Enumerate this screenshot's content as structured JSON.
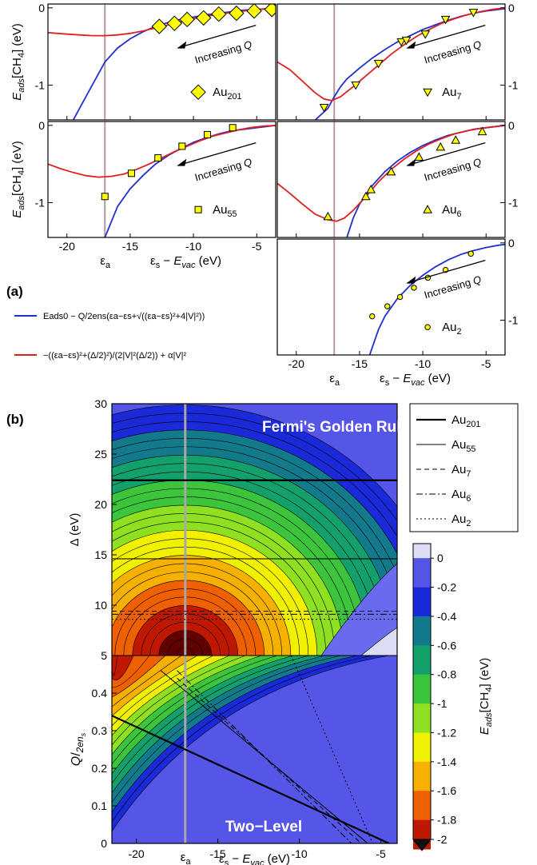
{
  "panel_a_label": "(a)",
  "panel_b_label": "(b)",
  "colors": {
    "blue_curve": "#1f2fd0",
    "red_curve": "#e02020",
    "marker_fill": "#ffff00",
    "eps_a_line": "#b89a9a"
  },
  "chart_data": [
    {
      "type": "line",
      "panel": "Au201",
      "legend": "Au",
      "legend_sub": "201",
      "marker": "diamond",
      "annotation": "Increasing Q",
      "ylabel": "Eads[CH4] (eV)",
      "xlim": [
        -21.5,
        -3.5
      ],
      "ylim": [
        -1.45,
        0.05
      ],
      "yticks": [
        0,
        -1
      ],
      "eps_a": -17.0,
      "series": [
        {
          "name": "model",
          "x": [
            -19.5,
            -18,
            -17,
            -16,
            -15,
            -14,
            -13,
            -12,
            -11,
            -10,
            -9,
            -8,
            -7,
            -6,
            -5,
            -4,
            -3.5
          ],
          "y": [
            -1.45,
            -1.0,
            -0.7,
            -0.52,
            -0.4,
            -0.31,
            -0.24,
            -0.19,
            -0.15,
            -0.12,
            -0.09,
            -0.07,
            -0.05,
            -0.03,
            -0.02,
            -0.01,
            0.0
          ]
        },
        {
          "name": "fit",
          "x": [
            -21.5,
            -20,
            -19,
            -18,
            -17,
            -16,
            -15,
            -14,
            -13,
            -12,
            -11,
            -10,
            -9,
            -8,
            -7,
            -6,
            -5,
            -4,
            -3.5
          ],
          "y": [
            -0.32,
            -0.34,
            -0.35,
            -0.36,
            -0.36,
            -0.35,
            -0.33,
            -0.3,
            -0.26,
            -0.22,
            -0.18,
            -0.14,
            -0.11,
            -0.08,
            -0.06,
            -0.04,
            -0.02,
            -0.01,
            0.0
          ]
        },
        {
          "name": "data",
          "x": [
            -12.7,
            -11.5,
            -10.5,
            -9.2,
            -8,
            -6.6,
            -5.2,
            -3.8
          ],
          "y": [
            -0.24,
            -0.2,
            -0.15,
            -0.13,
            -0.08,
            -0.07,
            -0.04,
            -0.02
          ]
        }
      ]
    },
    {
      "type": "line",
      "panel": "Au7",
      "legend": "Au",
      "legend_sub": "7",
      "marker": "triangle-down",
      "annotation": "Increasing Q",
      "xlim": [
        -21.5,
        -3.5
      ],
      "ylim": [
        -1.45,
        0.05
      ],
      "yticks": [
        0,
        -1
      ],
      "eps_a": -17.0,
      "series": [
        {
          "name": "model",
          "x": [
            -18.5,
            -17.5,
            -17,
            -16.5,
            -16,
            -15,
            -14,
            -13,
            -12,
            -11,
            -10,
            -9,
            -8,
            -7,
            -6,
            -5,
            -4,
            -3.5
          ],
          "y": [
            -1.45,
            -1.3,
            -1.15,
            -1.02,
            -0.92,
            -0.78,
            -0.65,
            -0.54,
            -0.44,
            -0.36,
            -0.28,
            -0.22,
            -0.16,
            -0.11,
            -0.07,
            -0.04,
            -0.02,
            -0.01
          ]
        },
        {
          "name": "fit",
          "x": [
            -21.5,
            -20.5,
            -19.5,
            -18.5,
            -17.8,
            -17.2,
            -16.5,
            -15.5,
            -14.5,
            -13.5,
            -12.5,
            -11.5,
            -10.5,
            -9.5,
            -8.5,
            -7.5,
            -6.5,
            -5.5,
            -4.5,
            -3.5
          ],
          "y": [
            -0.7,
            -0.8,
            -0.95,
            -1.1,
            -1.18,
            -1.2,
            -1.15,
            -1.02,
            -0.88,
            -0.74,
            -0.6,
            -0.48,
            -0.37,
            -0.28,
            -0.2,
            -0.14,
            -0.09,
            -0.05,
            -0.02,
            0.0
          ]
        },
        {
          "name": "data",
          "x": [
            -17.8,
            -15.3,
            -13.5,
            -11.7,
            -11.3,
            -9.8,
            -8.2,
            -6.0
          ],
          "y": [
            -1.29,
            -1.0,
            -0.72,
            -0.44,
            -0.42,
            -0.34,
            -0.15,
            -0.06
          ]
        }
      ]
    },
    {
      "type": "line",
      "panel": "Au55",
      "legend": "Au",
      "legend_sub": "55",
      "marker": "square",
      "annotation": "Increasing Q",
      "ylabel": "Eads[CH4] (eV)",
      "xlabel": "εs − Evac (eV)",
      "xlim": [
        -21.5,
        -3.5
      ],
      "ylim": [
        -1.45,
        0.05
      ],
      "yticks": [
        0,
        -1
      ],
      "xticks": [
        -20,
        -15,
        -10,
        -5
      ],
      "eps_a": -17.0,
      "eps_a_label": "εa",
      "series": [
        {
          "name": "model",
          "x": [
            -17.0,
            -16,
            -15,
            -14,
            -13,
            -12,
            -11,
            -10,
            -9,
            -8,
            -7,
            -6,
            -5,
            -4,
            -3.5
          ],
          "y": [
            -1.45,
            -1.05,
            -0.82,
            -0.65,
            -0.5,
            -0.39,
            -0.3,
            -0.22,
            -0.16,
            -0.11,
            -0.07,
            -0.05,
            -0.03,
            -0.01,
            0.0
          ]
        },
        {
          "name": "fit",
          "x": [
            -21.5,
            -20.5,
            -19.5,
            -18.5,
            -17.5,
            -16.5,
            -15.5,
            -14.5,
            -13.5,
            -12.5,
            -11.5,
            -10.5,
            -9.5,
            -8.5,
            -7.5,
            -6.5,
            -5.5,
            -4.5,
            -3.5
          ],
          "y": [
            -0.5,
            -0.56,
            -0.61,
            -0.65,
            -0.67,
            -0.66,
            -0.63,
            -0.57,
            -0.5,
            -0.42,
            -0.34,
            -0.27,
            -0.2,
            -0.14,
            -0.1,
            -0.06,
            -0.03,
            -0.01,
            0.0
          ]
        },
        {
          "name": "data",
          "x": [
            -17.0,
            -14.9,
            -12.8,
            -10.9,
            -8.9,
            -6.9
          ],
          "y": [
            -0.92,
            -0.62,
            -0.42,
            -0.27,
            -0.12,
            -0.03
          ]
        }
      ]
    },
    {
      "type": "line",
      "panel": "Au6",
      "legend": "Au",
      "legend_sub": "6",
      "marker": "triangle-up",
      "annotation": "Increasing Q",
      "xlim": [
        -21.5,
        -3.5
      ],
      "ylim": [
        -1.45,
        0.05
      ],
      "yticks": [
        0,
        -1
      ],
      "eps_a": -17.0,
      "series": [
        {
          "name": "model",
          "x": [
            -16.0,
            -15.5,
            -15,
            -14,
            -13,
            -12,
            -11,
            -10,
            -9,
            -8,
            -7,
            -6,
            -5,
            -4,
            -3.5
          ],
          "y": [
            -1.45,
            -1.2,
            -1.02,
            -0.78,
            -0.6,
            -0.46,
            -0.35,
            -0.26,
            -0.19,
            -0.13,
            -0.09,
            -0.05,
            -0.03,
            -0.01,
            0.0
          ]
        },
        {
          "name": "fit",
          "x": [
            -21.5,
            -20.5,
            -19.5,
            -18.5,
            -17.5,
            -16.8,
            -16.2,
            -15.5,
            -14.5,
            -13.5,
            -12.5,
            -11.5,
            -10.5,
            -9.5,
            -8.5,
            -7.5,
            -6.5,
            -5.5,
            -4.5,
            -3.5
          ],
          "y": [
            -0.75,
            -0.88,
            -1.02,
            -1.15,
            -1.22,
            -1.24,
            -1.2,
            -1.1,
            -0.92,
            -0.73,
            -0.57,
            -0.44,
            -0.33,
            -0.24,
            -0.17,
            -0.11,
            -0.07,
            -0.04,
            -0.02,
            0.0
          ]
        },
        {
          "name": "data",
          "x": [
            -17.5,
            -14.5,
            -14.1,
            -12.5,
            -10.3,
            -8.6,
            -7.4,
            -5.3
          ],
          "y": [
            -1.18,
            -0.92,
            -0.83,
            -0.6,
            -0.41,
            -0.28,
            -0.19,
            -0.08
          ]
        }
      ]
    },
    {
      "type": "line",
      "panel": "Au2",
      "legend": "Au",
      "legend_sub": "2",
      "marker": "circle",
      "annotation": "Increasing Q",
      "xlabel": "εs − Evac (eV)",
      "xlim": [
        -21.5,
        -3.5
      ],
      "ylim": [
        -1.45,
        0.05
      ],
      "yticks": [
        0,
        -1
      ],
      "xticks": [
        -20,
        -15,
        -10,
        -5
      ],
      "eps_a": -17.0,
      "eps_a_label": "εa",
      "series": [
        {
          "name": "model",
          "x": [
            -14.2,
            -13.5,
            -13,
            -12,
            -11,
            -10,
            -9,
            -8,
            -7,
            -6,
            -5,
            -4,
            -3.5
          ],
          "y": [
            -1.45,
            -1.12,
            -0.95,
            -0.72,
            -0.55,
            -0.42,
            -0.31,
            -0.22,
            -0.15,
            -0.1,
            -0.06,
            -0.03,
            -0.02
          ]
        },
        {
          "name": "data",
          "x": [
            -14.0,
            -12.8,
            -11.8,
            -10.7,
            -9.6,
            -8.2,
            -6.2
          ],
          "y": [
            -0.95,
            -0.82,
            -0.7,
            -0.58,
            -0.45,
            -0.35,
            -0.14
          ]
        }
      ]
    },
    {
      "type": "heatmap",
      "panel": "b",
      "title_top": "Fermi's Golden Rule",
      "title_bottom": "Two−Level",
      "ylabel_top": "Δ (eV)",
      "ylabel_bottom": "Q/2ens",
      "xlabel": "εs − Evac (eV)",
      "eps_a_label": "εa",
      "xticks": [
        -20,
        -15,
        -10,
        -5
      ],
      "yticks_top": [
        5,
        10,
        15,
        20,
        25,
        30
      ],
      "yticks_bottom": [
        0,
        0.1,
        0.2,
        0.3,
        0.4
      ],
      "xlim": [
        -21.5,
        -4
      ],
      "ylim_top": [
        5,
        30
      ],
      "ylim_bottom": [
        0,
        0.5
      ],
      "eps_a": -17.0,
      "horizontal_lines": [
        {
          "name": "Au201",
          "delta": 22.4,
          "style": "thick"
        },
        {
          "name": "Au55",
          "delta": 14.6,
          "style": "thin"
        },
        {
          "name": "Au7",
          "delta": 9.4,
          "style": "dashed"
        },
        {
          "name": "Au6",
          "delta": 9.1,
          "style": "dashdot"
        },
        {
          "name": "Au2",
          "delta": 8.6,
          "style": "dotted"
        }
      ],
      "colorbar": {
        "label": "Eads[CH4] (eV)",
        "ticks": [
          "0",
          "-0.2",
          "-0.4",
          "-0.6",
          "-0.8",
          "-1",
          "-1.2",
          "-1.4",
          "-1.6",
          "-1.8",
          "-2"
        ],
        "range": [
          -2,
          0.1
        ]
      },
      "legend": [
        {
          "label": "Au",
          "sub": "201",
          "style": "thick"
        },
        {
          "label": "Au",
          "sub": "55",
          "style": "thin"
        },
        {
          "label": "Au",
          "sub": "7",
          "style": "dashed"
        },
        {
          "label": "Au",
          "sub": "6",
          "style": "dashdot"
        },
        {
          "label": "Au",
          "sub": "2",
          "style": "dotted"
        }
      ]
    }
  ],
  "legend_a": {
    "blue_label": "Eads0 − Q/2ens(εa−εs+√((εa−εs)²+4|V|²))",
    "red_label": "−((εa−εs)²+(Δ/2)²)/(2|V|²(Δ/2)) + α|V|²"
  }
}
